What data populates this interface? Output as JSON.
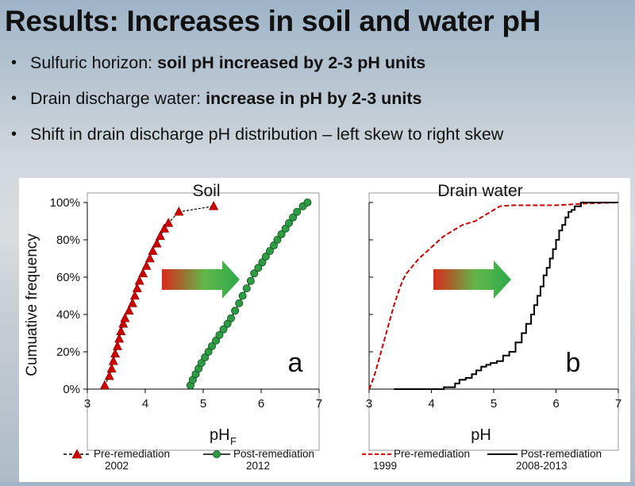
{
  "slide": {
    "title": "Results: Increases in soil and water pH",
    "bullets": [
      {
        "normal": "Sulfuric horizon: ",
        "bold": "soil pH increased by 2-3 pH units"
      },
      {
        "normal": "Drain discharge water: ",
        "bold": "increase in pH by 2-3 units"
      },
      {
        "normal": "Shift in drain discharge pH distribution – left skew to right skew",
        "bold": ""
      }
    ]
  },
  "colors": {
    "pre": "#cc0000",
    "post_line": "#000000",
    "post_marker": "#1f8a3a"
  },
  "chart_data": [
    {
      "type": "line",
      "title": "Soil",
      "panel_letter": "a",
      "ylabel": "Cumuative frequency",
      "xlabel_main": "pH",
      "xlabel_sub": "F",
      "xlim": [
        3,
        7
      ],
      "ylim": [
        0,
        100
      ],
      "xticks": [
        "3",
        "4",
        "5",
        "6",
        "7"
      ],
      "yticks": [
        "0%",
        "20%",
        "40%",
        "60%",
        "80%",
        "100%"
      ],
      "legend": [
        {
          "line1": "Pre-remediation",
          "line2": "2002"
        },
        {
          "line1": "Post-remediation",
          "line2": "2012"
        }
      ],
      "series": [
        {
          "name": "Pre-remediation 2002",
          "marker": "triangle",
          "dash": true,
          "x": [
            3.3,
            3.38,
            3.42,
            3.45,
            3.48,
            3.52,
            3.55,
            3.58,
            3.62,
            3.65,
            3.72,
            3.78,
            3.82,
            3.86,
            3.9,
            3.96,
            4.02,
            4.08,
            4.13,
            4.2,
            4.26,
            4.33,
            4.4,
            4.58,
            5.18
          ],
          "y": [
            2,
            7,
            11,
            15,
            19,
            23,
            27,
            31,
            35,
            38,
            42,
            46,
            50,
            54,
            58,
            62,
            66,
            70,
            74,
            78,
            82,
            86,
            89,
            95,
            98
          ]
        },
        {
          "name": "Post-remediation 2012",
          "marker": "circle",
          "dash": false,
          "x": [
            4.78,
            4.82,
            4.87,
            4.92,
            4.97,
            5.03,
            5.09,
            5.15,
            5.22,
            5.28,
            5.35,
            5.42,
            5.48,
            5.55,
            5.62,
            5.68,
            5.75,
            5.82,
            5.88,
            5.95,
            6.02,
            6.08,
            6.15,
            6.22,
            6.28,
            6.35,
            6.42,
            6.48,
            6.55,
            6.62,
            6.72,
            6.8
          ],
          "y": [
            2,
            5,
            8,
            11,
            14,
            17,
            20,
            23,
            26,
            29,
            32,
            35,
            38,
            42,
            46,
            50,
            54,
            58,
            62,
            65,
            68,
            71,
            74,
            77,
            80,
            83,
            86,
            89,
            92,
            95,
            98,
            100
          ]
        }
      ]
    },
    {
      "type": "line",
      "title": "Drain water",
      "panel_letter": "b",
      "xlabel_main": "pH",
      "xlim": [
        3,
        7
      ],
      "ylim": [
        0,
        100
      ],
      "xticks": [
        "3",
        "4",
        "5",
        "6",
        "7"
      ],
      "legend": [
        {
          "line1": "Pre-remediation",
          "line2": "1999"
        },
        {
          "line1": "Post-remediation",
          "line2": "2008-2013"
        }
      ],
      "series": [
        {
          "name": "Pre-remediation 1999",
          "dash": true,
          "x": [
            3.0,
            3.05,
            3.1,
            3.15,
            3.2,
            3.25,
            3.3,
            3.35,
            3.4,
            3.45,
            3.5,
            3.55,
            3.6,
            3.7,
            3.8,
            3.9,
            4.0,
            4.1,
            4.2,
            4.3,
            4.4,
            4.5,
            4.6,
            4.7,
            4.8,
            4.9,
            5.0,
            5.1,
            5.3,
            5.6,
            6.0,
            6.5,
            7.0
          ],
          "y": [
            0,
            4,
            9,
            15,
            21,
            27,
            33,
            39,
            45,
            50,
            55,
            59,
            62,
            66,
            70,
            73,
            76,
            79,
            82,
            84,
            86,
            88,
            89,
            90,
            92,
            94,
            96,
            98,
            98.5,
            98.5,
            98.5,
            99.5,
            100
          ]
        },
        {
          "name": "Post-remediation 2008-2013",
          "dash": false,
          "step": true,
          "x": [
            3.4,
            3.8,
            4.2,
            4.38,
            4.45,
            4.55,
            4.65,
            4.72,
            4.8,
            4.88,
            4.95,
            5.05,
            5.15,
            5.25,
            5.35,
            5.45,
            5.52,
            5.6,
            5.65,
            5.7,
            5.75,
            5.8,
            5.85,
            5.9,
            5.95,
            6.0,
            6.05,
            6.1,
            6.15,
            6.2,
            6.25,
            6.3,
            6.4,
            7.0
          ],
          "y": [
            0,
            0,
            1,
            3,
            5,
            6,
            8,
            10,
            12,
            13,
            14,
            15,
            18,
            20,
            25,
            30,
            35,
            40,
            45,
            50,
            55,
            61,
            65,
            70,
            75,
            80,
            85,
            88,
            92,
            95,
            96,
            98,
            100,
            100
          ]
        }
      ]
    }
  ]
}
